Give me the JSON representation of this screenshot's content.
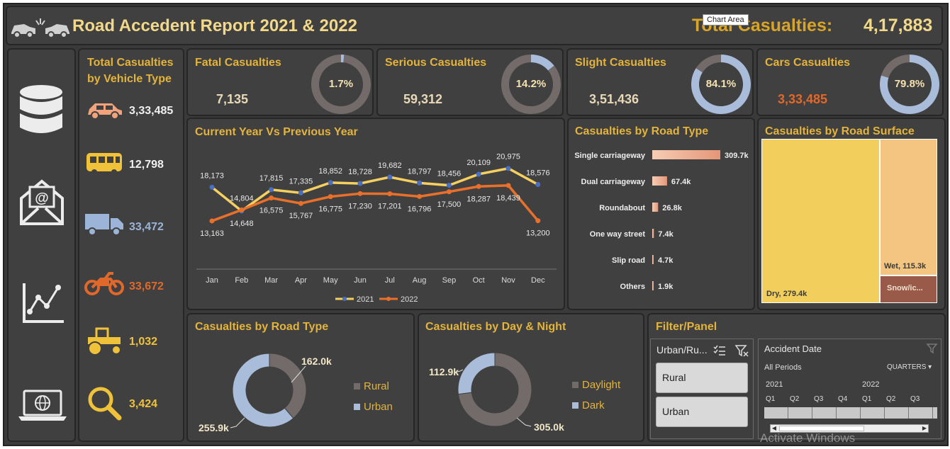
{
  "header": {
    "title": "Road Accedent Report 2021 & 2022",
    "total_label": "Total Casualties:",
    "total_value": "4,17,883",
    "tooltip": "Chart Area"
  },
  "sidebar": {
    "icons": [
      "database-icon",
      "mail-icon",
      "line-chart-icon",
      "laptop-globe-icon"
    ]
  },
  "vehicle_panel": {
    "title_line1": "Total Casualties",
    "title_line2": "by Vehicle Type",
    "items": [
      {
        "icon": "car-icon",
        "value": "3,33,485",
        "color": "#f0f0f0"
      },
      {
        "icon": "bus-icon",
        "value": "12,798",
        "color": "#f0f0f0"
      },
      {
        "icon": "truck-icon",
        "value": "33,472",
        "color": "#9bb4d8"
      },
      {
        "icon": "motorcycle-icon",
        "value": "33,672",
        "color": "#e0682a"
      },
      {
        "icon": "tractor-icon",
        "value": "1,032",
        "color": "#f0c23a"
      },
      {
        "icon": "magnifier-icon",
        "value": "3,424",
        "color": "#f0c23a"
      }
    ]
  },
  "kpis": [
    {
      "title": "Fatal Casualties",
      "value": "7,135",
      "pct": "1.7%",
      "fraction": 0.017,
      "value_color": "#e8d8b8"
    },
    {
      "title": "Serious Casualties",
      "value": "59,312",
      "pct": "14.2%",
      "fraction": 0.142,
      "value_color": "#e8d8b8"
    },
    {
      "title": "Slight Casualties",
      "value": "3,51,436",
      "pct": "84.1%",
      "fraction": 0.841,
      "value_color": "#e8d8b8"
    },
    {
      "title": "Cars Casualties",
      "value": "3,33,485",
      "pct": "79.8%",
      "fraction": 0.798,
      "value_color": "#e0682a"
    }
  ],
  "line_panel": {
    "title": "Current Year Vs Previous Year"
  },
  "road_type_panel": {
    "title": "Casualties by Road Type"
  },
  "surface_panel": {
    "title": "Casualties by Road Surface",
    "labels": {
      "dry": "Dry, 279.4k",
      "wet": "Wet, 115.3k",
      "snow": "Snow/ic..."
    }
  },
  "area_panel": {
    "title": "Casualties by Road Type",
    "legend": [
      "Rural",
      "Urban"
    ],
    "labels": {
      "rural": "162.0k",
      "urban": "255.9k"
    }
  },
  "daynight_panel": {
    "title": "Casualties by Day & Night",
    "legend": [
      "Daylight",
      "Dark"
    ],
    "labels": {
      "dark": "112.9k",
      "daylight": "305.0k"
    }
  },
  "filter_panel": {
    "title": "Filter/Panel",
    "slicer_title": "Urban/Ru...",
    "options": [
      "Rural",
      "Urban"
    ],
    "timeline": {
      "title": "Accident Date",
      "all_periods": "All Periods",
      "level": "QUARTERS",
      "years": [
        "2021",
        "2022"
      ],
      "quarters": [
        "Q1",
        "Q2",
        "Q3",
        "Q4",
        "Q1",
        "Q2",
        "Q3"
      ]
    }
  },
  "watermark": "Activate Windows",
  "chart_data": [
    {
      "type": "line",
      "title": "Current Year Vs Previous Year",
      "categories": [
        "Jan",
        "Feb",
        "Mar",
        "Apr",
        "May",
        "Jun",
        "Jul",
        "Aug",
        "Sep",
        "Oct",
        "Nov",
        "Dec"
      ],
      "series": [
        {
          "name": "2021",
          "color": "#f5d060",
          "values": [
            18173,
            14648,
            17815,
            17335,
            18852,
            18728,
            19682,
            18797,
            18456,
            20109,
            20975,
            18576
          ],
          "labels": [
            "18,173",
            "14,648",
            "17,815",
            "17,335",
            "18,852",
            "18,728",
            "19,682",
            "18,797",
            "18,456",
            "20,109",
            "20,975",
            "18,576"
          ]
        },
        {
          "name": "2022",
          "color": "#e8702a",
          "values": [
            13163,
            14804,
            16575,
            15767,
            16775,
            17230,
            17201,
            16796,
            17500,
            18287,
            18439,
            13200
          ],
          "labels": [
            "13,163",
            "14,804",
            "16,575",
            "15,767",
            "16,775",
            "17,230",
            "17,201",
            "16,796",
            "17,500",
            "18,287",
            "18,439",
            "13,200"
          ]
        }
      ]
    },
    {
      "type": "bar",
      "title": "Casualties by Road Type",
      "categories": [
        "Single carriageway",
        "Dual carriageway",
        "Roundabout",
        "One way street",
        "Slip road",
        "Others"
      ],
      "values": [
        309.7,
        67.4,
        26.8,
        7.4,
        4.7,
        1.9
      ],
      "labels": [
        "309.7k",
        "67.4k",
        "26.8k",
        "7.4k",
        "4.7k",
        "1.9k"
      ]
    },
    {
      "type": "heatmap",
      "title": "Casualties by Road Surface",
      "categories": [
        "Dry",
        "Wet",
        "Snow/ic..."
      ],
      "values": [
        279.4,
        115.3,
        23.2
      ]
    },
    {
      "type": "pie",
      "title": "Casualties by Road Type",
      "categories": [
        "Rural",
        "Urban"
      ],
      "values": [
        162.0,
        255.9
      ]
    },
    {
      "type": "pie",
      "title": "Casualties by Day & Night",
      "categories": [
        "Daylight",
        "Dark"
      ],
      "values": [
        305.0,
        112.9
      ]
    }
  ]
}
